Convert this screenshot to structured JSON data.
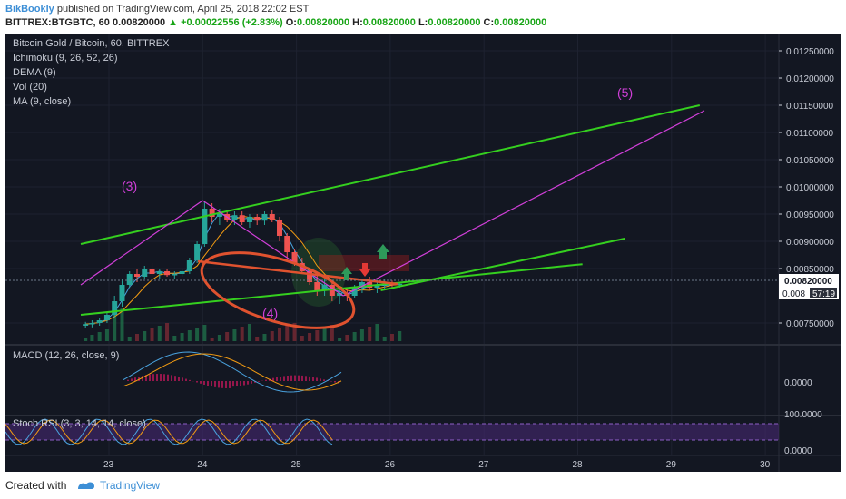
{
  "header": {
    "user": "BikBookly",
    "published": "published on TradingView.com, April 25, 2018 22:02 EST",
    "symbol": "BITTREX:BTGBTC, 60",
    "last": "0.00820000",
    "change": "+0.00022556 (+2.83%)",
    "o_label": "O:",
    "o": "0.00820000",
    "h_label": "H:",
    "h": "0.00820000",
    "l_label": "L:",
    "l": "0.00820000",
    "c_label": "C:",
    "c": "0.00820000"
  },
  "legend": {
    "title": "Bitcoin Gold / Bitcoin, 60, BITTREX",
    "ichimoku": "Ichimoku (9, 26, 52, 26)",
    "dema": "DEMA (9)",
    "vol": "Vol (20)",
    "ma": "MA (9, close)",
    "macd": "MACD (12, 26, close, 9)",
    "stoch": "Stoch RSI (3, 3, 14, 14, close)"
  },
  "annotations": {
    "wave3": "(3)",
    "wave4": "(4)",
    "wave5": "(5)"
  },
  "price_badge": {
    "value": "0.00820000",
    "partial": "0.008",
    "timer": "57:19"
  },
  "footer": {
    "created": "Created with",
    "brand": "TradingView"
  },
  "chart_data": {
    "type": "candlestick",
    "title": "Bitcoin Gold / Bitcoin, 60, BITTREX",
    "x_ticks": [
      "23",
      "24",
      "25",
      "26",
      "27",
      "28",
      "29",
      "30"
    ],
    "price_ticks": [
      "0.01250000",
      "0.01200000",
      "0.01150000",
      "0.01100000",
      "0.01050000",
      "0.01000000",
      "0.00950000",
      "0.00900000",
      "0.00850000",
      "0.00750000"
    ],
    "price_ylim": [
      0.0071,
      0.0128
    ],
    "macd_ticks": [
      "0.0000"
    ],
    "stoch_ticks": [
      "100.0000",
      "0.0000"
    ],
    "last_price": 0.0082,
    "candles": [
      [
        22.75,
        0.00745,
        0.00752,
        0.0074,
        0.00748
      ],
      [
        22.82,
        0.00748,
        0.00755,
        0.00742,
        0.0075
      ],
      [
        22.9,
        0.0075,
        0.0076,
        0.00745,
        0.00755
      ],
      [
        22.98,
        0.00755,
        0.0077,
        0.0075,
        0.00765
      ],
      [
        23.06,
        0.00765,
        0.008,
        0.0076,
        0.0079
      ],
      [
        23.14,
        0.0079,
        0.0083,
        0.0078,
        0.0082
      ],
      [
        23.22,
        0.0082,
        0.00845,
        0.00815,
        0.0084
      ],
      [
        23.3,
        0.0084,
        0.0085,
        0.00825,
        0.00835
      ],
      [
        23.38,
        0.00835,
        0.00855,
        0.0083,
        0.0085
      ],
      [
        23.46,
        0.0085,
        0.0086,
        0.00835,
        0.0084
      ],
      [
        23.54,
        0.0084,
        0.0085,
        0.0083,
        0.00845
      ],
      [
        23.62,
        0.00845,
        0.0085,
        0.00835,
        0.00838
      ],
      [
        23.7,
        0.00838,
        0.00845,
        0.0083,
        0.0084
      ],
      [
        23.78,
        0.0084,
        0.0085,
        0.00835,
        0.00845
      ],
      [
        23.86,
        0.00845,
        0.0087,
        0.0084,
        0.00865
      ],
      [
        23.94,
        0.00865,
        0.009,
        0.0086,
        0.00895
      ],
      [
        24.02,
        0.00895,
        0.00975,
        0.0089,
        0.0096
      ],
      [
        24.1,
        0.0096,
        0.0097,
        0.00935,
        0.00945
      ],
      [
        24.18,
        0.00945,
        0.0096,
        0.0093,
        0.0095
      ],
      [
        24.26,
        0.0095,
        0.00958,
        0.00935,
        0.0094
      ],
      [
        24.34,
        0.0094,
        0.00955,
        0.0093,
        0.00948
      ],
      [
        24.42,
        0.00948,
        0.00955,
        0.0093,
        0.00935
      ],
      [
        24.5,
        0.00935,
        0.0095,
        0.00925,
        0.00945
      ],
      [
        24.58,
        0.00945,
        0.0095,
        0.0093,
        0.00938
      ],
      [
        24.66,
        0.00938,
        0.00955,
        0.0093,
        0.0095
      ],
      [
        24.74,
        0.0095,
        0.00958,
        0.00935,
        0.0094
      ],
      [
        24.82,
        0.0094,
        0.00945,
        0.009,
        0.0091
      ],
      [
        24.9,
        0.0091,
        0.00915,
        0.0087,
        0.0088
      ],
      [
        24.98,
        0.0088,
        0.00885,
        0.00855,
        0.0086
      ],
      [
        25.06,
        0.0086,
        0.0087,
        0.0084,
        0.00845
      ],
      [
        25.14,
        0.00845,
        0.0085,
        0.0082,
        0.00825
      ],
      [
        25.22,
        0.00825,
        0.0084,
        0.008,
        0.0081
      ],
      [
        25.3,
        0.0081,
        0.0083,
        0.008,
        0.0082
      ],
      [
        25.38,
        0.0082,
        0.00825,
        0.0079,
        0.008
      ],
      [
        25.46,
        0.008,
        0.00815,
        0.00785,
        0.00805
      ],
      [
        25.54,
        0.00805,
        0.00815,
        0.0079,
        0.008
      ],
      [
        25.62,
        0.008,
        0.0082,
        0.00795,
        0.00815
      ],
      [
        25.7,
        0.00815,
        0.0083,
        0.00805,
        0.00825
      ],
      [
        25.78,
        0.00825,
        0.00835,
        0.0081,
        0.00815
      ],
      [
        25.86,
        0.00815,
        0.00825,
        0.00805,
        0.0082
      ],
      [
        25.94,
        0.0082,
        0.0083,
        0.0081,
        0.00822
      ],
      [
        26.02,
        0.00822,
        0.00828,
        0.00815,
        0.0082
      ],
      [
        26.1,
        0.0082,
        0.00825,
        0.00815,
        0.00822
      ]
    ],
    "lines": [
      {
        "name": "upper-channel",
        "color": "#35d01f",
        "points": [
          [
            22.7,
            0.00895
          ],
          [
            29.3,
            0.0115
          ]
        ]
      },
      {
        "name": "lower-channel",
        "color": "#35d01f",
        "points": [
          [
            22.7,
            0.00765
          ],
          [
            28.05,
            0.00858
          ]
        ]
      },
      {
        "name": "wave4-trendline",
        "color": "#35d01f",
        "points": [
          [
            25.9,
            0.0081
          ],
          [
            28.5,
            0.00905
          ]
        ]
      },
      {
        "name": "wave-path-1",
        "color": "#d13fd9",
        "points": [
          [
            22.7,
            0.0082
          ],
          [
            24.0,
            0.00975
          ]
        ]
      },
      {
        "name": "wave-path-2",
        "color": "#d13fd9",
        "points": [
          [
            24.0,
            0.00975
          ],
          [
            25.5,
            0.008
          ]
        ]
      },
      {
        "name": "wave-path-3",
        "color": "#d13fd9",
        "points": [
          [
            25.5,
            0.008
          ],
          [
            29.35,
            0.0114
          ]
        ]
      }
    ]
  }
}
